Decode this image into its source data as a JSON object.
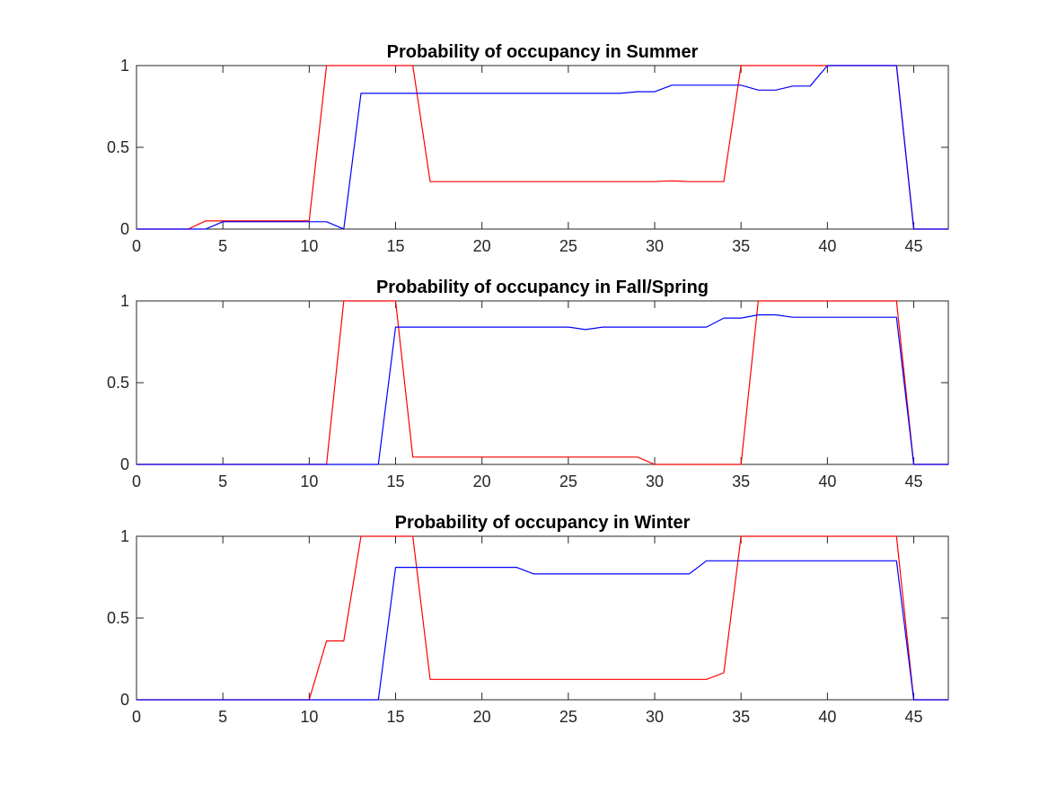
{
  "chart_data": [
    {
      "type": "line",
      "title": "Probability of occupancy in Summer",
      "xlim": [
        0,
        47
      ],
      "ylim": [
        0,
        1
      ],
      "x_ticks": [
        "0",
        "5",
        "10",
        "15",
        "20",
        "25",
        "30",
        "35",
        "40",
        "45"
      ],
      "y_ticks": [
        "0",
        "0.5",
        "1"
      ],
      "grid": false,
      "series": [
        {
          "color": "#ff0000",
          "points": [
            [
              0,
              0
            ],
            [
              3,
              0
            ],
            [
              4,
              0.05
            ],
            [
              10,
              0.05
            ],
            [
              11,
              1
            ],
            [
              16,
              1
            ],
            [
              17,
              0.29
            ],
            [
              29,
              0.29
            ],
            [
              30,
              0.29
            ],
            [
              31,
              0.295
            ],
            [
              32,
              0.29
            ],
            [
              34,
              0.29
            ],
            [
              35,
              1
            ],
            [
              44,
              1
            ],
            [
              45,
              0
            ],
            [
              47,
              0
            ]
          ]
        },
        {
          "color": "#0000ff",
          "points": [
            [
              0,
              0
            ],
            [
              4,
              0
            ],
            [
              5,
              0.045
            ],
            [
              11,
              0.045
            ],
            [
              12,
              0
            ],
            [
              13,
              0.83
            ],
            [
              28,
              0.83
            ],
            [
              29,
              0.84
            ],
            [
              30,
              0.84
            ],
            [
              31,
              0.88
            ],
            [
              35,
              0.88
            ],
            [
              36,
              0.85
            ],
            [
              37,
              0.85
            ],
            [
              38,
              0.875
            ],
            [
              39,
              0.875
            ],
            [
              40,
              1
            ],
            [
              44,
              1
            ],
            [
              45,
              0
            ],
            [
              47,
              0
            ]
          ]
        }
      ]
    },
    {
      "type": "line",
      "title": "Probability of occupancy in Fall/Spring",
      "xlim": [
        0,
        47
      ],
      "ylim": [
        0,
        1
      ],
      "x_ticks": [
        "0",
        "5",
        "10",
        "15",
        "20",
        "25",
        "30",
        "35",
        "40",
        "45"
      ],
      "y_ticks": [
        "0",
        "0.5",
        "1"
      ],
      "grid": false,
      "series": [
        {
          "color": "#ff0000",
          "points": [
            [
              0,
              0
            ],
            [
              11,
              0
            ],
            [
              12,
              1
            ],
            [
              15,
              1
            ],
            [
              16,
              0.045
            ],
            [
              29,
              0.045
            ],
            [
              30,
              0
            ],
            [
              35,
              0
            ],
            [
              36,
              1
            ],
            [
              44,
              1
            ],
            [
              45,
              0
            ],
            [
              47,
              0
            ]
          ]
        },
        {
          "color": "#0000ff",
          "points": [
            [
              0,
              0
            ],
            [
              14,
              0
            ],
            [
              15,
              0.84
            ],
            [
              25,
              0.84
            ],
            [
              26,
              0.825
            ],
            [
              27,
              0.84
            ],
            [
              33,
              0.84
            ],
            [
              34,
              0.895
            ],
            [
              35,
              0.895
            ],
            [
              36,
              0.915
            ],
            [
              37,
              0.915
            ],
            [
              38,
              0.9
            ],
            [
              44,
              0.9
            ],
            [
              45,
              0
            ],
            [
              47,
              0
            ]
          ]
        }
      ]
    },
    {
      "type": "line",
      "title": "Probability of occupancy in Winter",
      "xlim": [
        0,
        47
      ],
      "ylim": [
        0,
        1
      ],
      "x_ticks": [
        "0",
        "5",
        "10",
        "15",
        "20",
        "25",
        "30",
        "35",
        "40",
        "45"
      ],
      "y_ticks": [
        "0",
        "0.5",
        "1"
      ],
      "grid": false,
      "series": [
        {
          "color": "#ff0000",
          "points": [
            [
              0,
              0
            ],
            [
              10,
              0
            ],
            [
              11,
              0.36
            ],
            [
              12,
              0.36
            ],
            [
              13,
              1
            ],
            [
              16,
              1
            ],
            [
              17,
              0.125
            ],
            [
              33,
              0.125
            ],
            [
              34,
              0.165
            ],
            [
              35,
              1
            ],
            [
              44,
              1
            ],
            [
              45,
              0
            ],
            [
              47,
              0
            ]
          ]
        },
        {
          "color": "#0000ff",
          "points": [
            [
              0,
              0
            ],
            [
              14,
              0
            ],
            [
              15,
              0.81
            ],
            [
              22,
              0.81
            ],
            [
              23,
              0.77
            ],
            [
              32,
              0.77
            ],
            [
              33,
              0.85
            ],
            [
              44,
              0.85
            ],
            [
              45,
              0
            ],
            [
              47,
              0
            ]
          ]
        }
      ]
    }
  ]
}
